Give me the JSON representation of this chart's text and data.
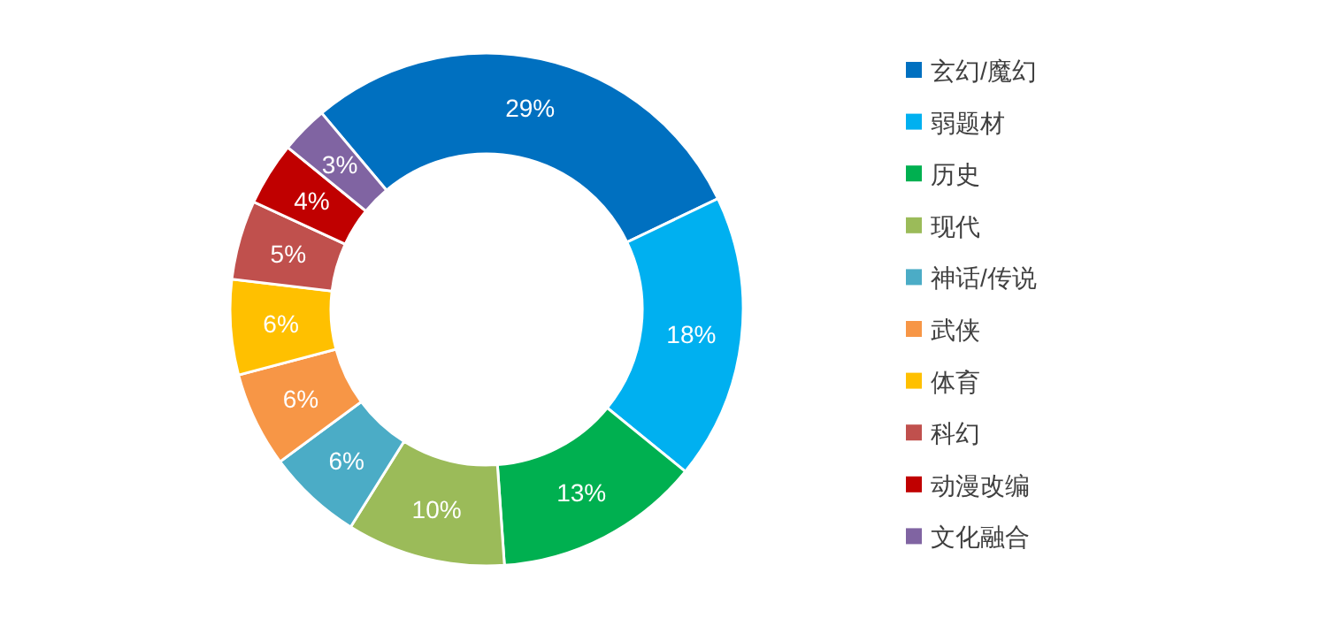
{
  "chart_data": {
    "type": "donut",
    "categories": [
      "玄幻/魔幻",
      "弱题材",
      "历史",
      "现代",
      "神话/传说",
      "武侠",
      "体育",
      "科幻",
      "动漫改编",
      "文化融合"
    ],
    "values": [
      29,
      18,
      13,
      10,
      6,
      6,
      6,
      5,
      4,
      3
    ],
    "colors": [
      "#0070c0",
      "#00b0f0",
      "#00b050",
      "#9bbb59",
      "#4bacc6",
      "#f79646",
      "#ffc000",
      "#c0504d",
      "#c00000",
      "#8064a2"
    ],
    "value_labels": [
      "29%",
      "18%",
      "13%",
      "10%",
      "6%",
      "6%",
      "6%",
      "5%",
      "4%",
      "3%"
    ],
    "legend": "right"
  }
}
